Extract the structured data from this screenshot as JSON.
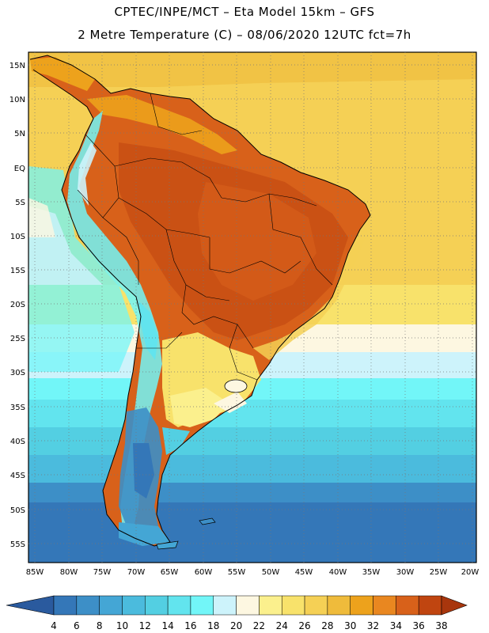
{
  "header": {
    "line1": "CPTEC/INPE/MCT –  Eta Model 15km – GFS",
    "line2": "2 Metre Temperature (C) – 08/06/2020 12UTC fct=7h"
  },
  "lat_labels": [
    "15N",
    "10N",
    "5N",
    "EQ",
    "5S",
    "10S",
    "15S",
    "20S",
    "25S",
    "30S",
    "35S",
    "40S",
    "45S",
    "50S",
    "55S"
  ],
  "lon_labels": [
    "85W",
    "80W",
    "75W",
    "70W",
    "65W",
    "60W",
    "55W",
    "50W",
    "45W",
    "40W",
    "35W",
    "30W",
    "25W",
    "20W"
  ],
  "colorbar": {
    "levels": [
      "4",
      "6",
      "8",
      "10",
      "12",
      "14",
      "16",
      "18",
      "20",
      "22",
      "24",
      "26",
      "28",
      "30",
      "32",
      "34",
      "36",
      "38"
    ],
    "colors": [
      "#2a5a9e",
      "#3477b8",
      "#3d8fc7",
      "#44a6d5",
      "#4bbbdd",
      "#53cfe2",
      "#62e4ee",
      "#72f6f8",
      "#cdf3fb",
      "#fdf7e1",
      "#fbf08d",
      "#f8e26b",
      "#f5d055",
      "#efbb3b",
      "#eda21c",
      "#e98720",
      "#d8611a",
      "#c04510",
      "#a8360d"
    ]
  },
  "chart_data": {
    "type": "heatmap",
    "variable": "2 Metre Temperature (C)",
    "units": "C",
    "model": "Eta Model 15km – GFS",
    "run": "08/06/2020 12UTC",
    "forecast": "fct=7h",
    "lon_range": [
      -86,
      -19
    ],
    "lat_range": [
      -58,
      17
    ],
    "levels": [
      4,
      6,
      8,
      10,
      12,
      14,
      16,
      18,
      20,
      22,
      24,
      26,
      28,
      30,
      32,
      34,
      36,
      38
    ]
  }
}
